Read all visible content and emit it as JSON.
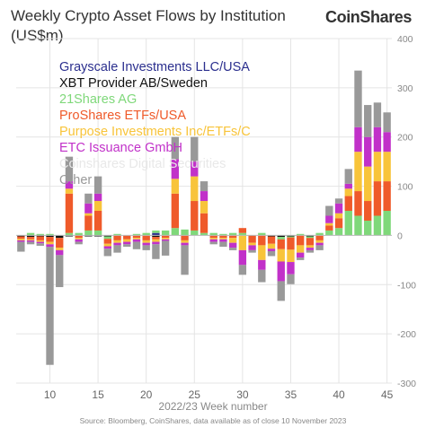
{
  "header": {
    "title": "Weekly Crypto Asset Flows by Institution",
    "subtitle": "(US$m)",
    "brand": "CoinShares"
  },
  "footer": {
    "source": "Source: Bloomberg, CoinShares, data available as of close 10 November 2023"
  },
  "chart_data": {
    "type": "bar",
    "stacked": true,
    "title": "Weekly Crypto Asset Flows by Institution",
    "subtitle": "(US$m)",
    "xlabel": "Week number",
    "xlabel_prefix": "2022/23",
    "ylabel": "",
    "ylim": [
      -300,
      400
    ],
    "yaxis_position": "right",
    "yticks": [
      -300,
      -200,
      -100,
      0,
      100,
      200,
      300,
      400
    ],
    "xticks": [
      10,
      15,
      20,
      25,
      30,
      35,
      40,
      45
    ],
    "x": [
      7,
      8,
      9,
      10,
      11,
      12,
      13,
      14,
      15,
      16,
      17,
      18,
      19,
      20,
      21,
      22,
      23,
      24,
      25,
      26,
      27,
      28,
      29,
      30,
      31,
      32,
      33,
      34,
      35,
      36,
      37,
      38,
      39,
      40,
      41,
      42,
      43,
      44,
      45
    ],
    "grid": true,
    "legend_position": "top-left",
    "series": [
      {
        "name": "Grayscale Investments LLC/USA",
        "color": "#2b2f8e",
        "values": [
          0,
          0,
          0,
          0,
          0,
          0,
          0,
          0,
          0,
          0,
          0,
          0,
          0,
          0,
          5,
          0,
          0,
          0,
          0,
          0,
          0,
          0,
          0,
          0,
          0,
          0,
          0,
          0,
          0,
          0,
          0,
          0,
          0,
          0,
          0,
          0,
          0,
          0,
          0
        ]
      },
      {
        "name": "XBT Provider AB/Sweden",
        "color": "#111111",
        "values": [
          -2,
          -3,
          -2,
          -3,
          -5,
          -2,
          0,
          -2,
          -2,
          -2,
          0,
          0,
          0,
          0,
          -3,
          0,
          0,
          0,
          0,
          0,
          0,
          0,
          0,
          0,
          0,
          0,
          -2,
          -3,
          -2,
          0,
          -2,
          0,
          0,
          0,
          0,
          0,
          0,
          0,
          0
        ]
      },
      {
        "name": "21Shares AG",
        "color": "#7fd87a",
        "values": [
          0,
          5,
          3,
          3,
          0,
          5,
          5,
          10,
          10,
          -5,
          3,
          0,
          3,
          5,
          5,
          10,
          15,
          12,
          10,
          5,
          5,
          3,
          5,
          5,
          0,
          5,
          0,
          -5,
          -2,
          3,
          -3,
          5,
          10,
          15,
          50,
          40,
          30,
          40,
          50
        ]
      },
      {
        "name": "ProShares ETFs/USA",
        "color": "#ef5a2a",
        "values": [
          -5,
          -5,
          -8,
          -10,
          -20,
          80,
          -5,
          30,
          40,
          -10,
          -10,
          -8,
          -5,
          -10,
          -5,
          -5,
          70,
          -10,
          60,
          40,
          -5,
          -5,
          -5,
          10,
          -15,
          -20,
          -15,
          -20,
          -25,
          -20,
          -15,
          -10,
          10,
          20,
          30,
          50,
          40,
          70,
          60
        ]
      },
      {
        "name": "Purpose Investments Inc/ETFs/C",
        "color": "#f8c43a",
        "values": [
          -3,
          -2,
          -3,
          -5,
          -5,
          10,
          -3,
          5,
          20,
          -5,
          -5,
          -5,
          -3,
          -5,
          -5,
          -3,
          30,
          -5,
          50,
          25,
          -3,
          -3,
          -10,
          -30,
          -5,
          -30,
          -10,
          -25,
          -25,
          -15,
          -5,
          -5,
          5,
          10,
          15,
          80,
          70,
          60,
          60
        ]
      },
      {
        "name": "ETC Issuance GmbH",
        "color": "#c131c9",
        "values": [
          -3,
          -3,
          -3,
          -5,
          -10,
          15,
          -5,
          20,
          15,
          -5,
          -5,
          -5,
          -5,
          -5,
          -5,
          -3,
          40,
          -5,
          30,
          20,
          -5,
          -5,
          -10,
          -30,
          -10,
          -20,
          -5,
          -40,
          -25,
          -10,
          -5,
          -5,
          15,
          20,
          10,
          50,
          60,
          50,
          40
        ]
      },
      {
        "name": "Coinshares Digital Securities",
        "color": "#e8e8e8",
        "values": [
          0,
          0,
          0,
          0,
          0,
          0,
          0,
          0,
          0,
          0,
          0,
          0,
          0,
          0,
          0,
          0,
          0,
          0,
          0,
          0,
          0,
          0,
          0,
          0,
          0,
          0,
          0,
          0,
          0,
          0,
          0,
          0,
          0,
          0,
          0,
          0,
          0,
          0,
          0
        ]
      },
      {
        "name": "Other",
        "color": "#999999",
        "values": [
          -20,
          -5,
          -5,
          -240,
          -65,
          50,
          -5,
          20,
          35,
          -15,
          -15,
          -5,
          -15,
          -10,
          -30,
          -30,
          45,
          -60,
          50,
          20,
          -5,
          -10,
          -5,
          -20,
          -5,
          -25,
          -10,
          -40,
          -20,
          -5,
          -5,
          -10,
          20,
          10,
          30,
          115,
          65,
          50,
          40
        ]
      }
    ]
  }
}
